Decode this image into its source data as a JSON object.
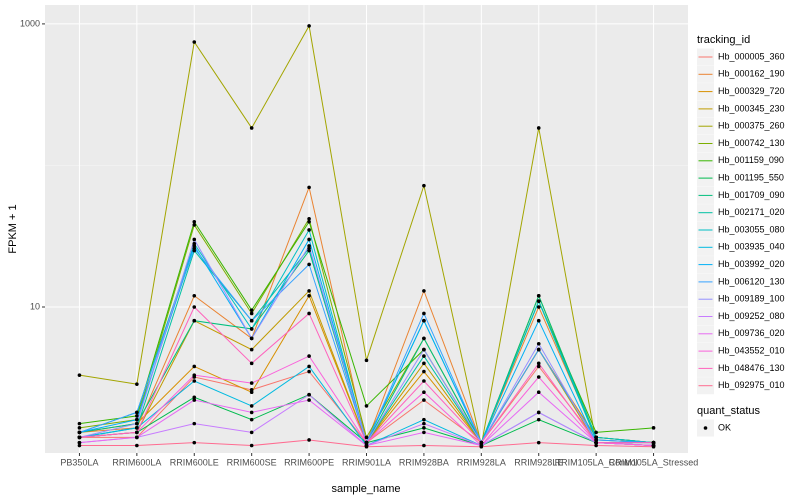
{
  "chart_data": {
    "type": "line",
    "x_label": "sample_name",
    "y_label": "FPKM + 1",
    "log_y": true,
    "grid": true,
    "point_color": "#000000",
    "legend_title": "tracking_id",
    "categories": [
      "PB350LA",
      "RRIM600LA",
      "RRIM600LE",
      "RRIM600SE",
      "RRIM600PE",
      "RRIM901LA",
      "RRIM928BA",
      "RRIM928LA",
      "RRIM928LE",
      "RRIM105LA_Control",
      "RRIM105LA_Stressed"
    ],
    "ylim": [
      0.93,
      1360
    ],
    "yticks": [
      10,
      1000
    ],
    "series": [
      {
        "name": "Hb_000005_360",
        "color": "#F8766D",
        "values": [
          1.2,
          1.2,
          3.2,
          2.6,
          3.5,
          1.1,
          2.2,
          1.1,
          3.8,
          1.15,
          1.1
        ]
      },
      {
        "name": "Hb_000162_190",
        "color": "#EA8331",
        "values": [
          1.3,
          1.4,
          12,
          6,
          70,
          1.1,
          13,
          1.1,
          10,
          1.2,
          1.1
        ]
      },
      {
        "name": "Hb_000329_720",
        "color": "#D89000",
        "values": [
          1.3,
          1.5,
          3.8,
          2.5,
          12,
          1.1,
          3.5,
          1.1,
          5,
          1.2,
          1.1
        ]
      },
      {
        "name": "Hb_000345_230",
        "color": "#C09B00",
        "values": [
          1.2,
          1.3,
          8,
          5,
          13,
          1.1,
          4,
          1.1,
          5,
          1.1,
          1.1
        ]
      },
      {
        "name": "Hb_000375_260",
        "color": "#A3A500",
        "values": [
          3.3,
          2.85,
          745,
          184,
          968,
          4.2,
          72,
          1.05,
          184,
          1.1,
          1.05
        ]
      },
      {
        "name": "Hb_000742_130",
        "color": "#7CAE00",
        "values": [
          1.4,
          1.6,
          38,
          9,
          42,
          1.2,
          6,
          1.1,
          12,
          1.2,
          1.1
        ]
      },
      {
        "name": "Hb_001159_090",
        "color": "#39B600",
        "values": [
          1.5,
          1.7,
          40,
          9.5,
          40,
          2,
          5,
          1.1,
          11,
          1.3,
          1.4
        ]
      },
      {
        "name": "Hb_001195_550",
        "color": "#00BB4E",
        "values": [
          1.2,
          1.3,
          2.3,
          1.6,
          2.4,
          1.1,
          1.4,
          1.05,
          1.6,
          1.1,
          1.05
        ]
      },
      {
        "name": "Hb_001709_090",
        "color": "#00BF7D",
        "values": [
          1.3,
          1.5,
          8,
          7,
          25,
          1.1,
          6,
          1.1,
          12,
          1.2,
          1.1
        ]
      },
      {
        "name": "Hb_002171_020",
        "color": "#00C1A3",
        "values": [
          1.2,
          1.4,
          25,
          8,
          26,
          1.1,
          4.5,
          1.1,
          11,
          1.15,
          1.1
        ]
      },
      {
        "name": "Hb_003055_080",
        "color": "#00BFC4",
        "values": [
          1.3,
          1.8,
          28,
          7,
          35,
          1.1,
          8,
          1.1,
          11,
          1.2,
          1.1
        ]
      },
      {
        "name": "Hb_003935_040",
        "color": "#00BAE0",
        "values": [
          1.2,
          1.4,
          3,
          2,
          3.8,
          1.05,
          1.6,
          1.05,
          1.8,
          1.1,
          1.05
        ]
      },
      {
        "name": "Hb_003992_020",
        "color": "#00B0F6",
        "values": [
          1.3,
          1.6,
          27,
          6,
          30,
          1.1,
          8,
          1.1,
          8,
          1.1,
          1.1
        ]
      },
      {
        "name": "Hb_006120_130",
        "color": "#35A2FF",
        "values": [
          1.3,
          1.8,
          26,
          8,
          20,
          1.1,
          9,
          1.1,
          5,
          1.15,
          1.1
        ]
      },
      {
        "name": "Hb_009189_100",
        "color": "#9590FF",
        "values": [
          1.2,
          1.5,
          30,
          6,
          27,
          1.1,
          5,
          1.1,
          5.5,
          1.1,
          1.05
        ]
      },
      {
        "name": "Hb_009252_080",
        "color": "#C77CFF",
        "values": [
          1.1,
          1.2,
          1.5,
          1.3,
          2.4,
          1.05,
          1.5,
          1.05,
          1.8,
          1.1,
          1.05
        ]
      },
      {
        "name": "Hb_009736_020",
        "color": "#E76BF3",
        "values": [
          1.1,
          1.2,
          2.2,
          1.8,
          2.2,
          1.05,
          1.3,
          1.05,
          2.5,
          1.1,
          1.05
        ]
      },
      {
        "name": "Hb_043552_010",
        "color": "#FA62DB",
        "values": [
          1.2,
          1.3,
          3.3,
          2.9,
          4.5,
          1.1,
          2.5,
          1.05,
          3.2,
          1.1,
          1.05
        ]
      },
      {
        "name": "Hb_048476_130",
        "color": "#FF62BC",
        "values": [
          1.2,
          1.3,
          10,
          4,
          9,
          1.1,
          3,
          1.1,
          4,
          1.1,
          1.1
        ]
      },
      {
        "name": "Hb_092975_010",
        "color": "#FF6C91",
        "values": [
          1.05,
          1.05,
          1.1,
          1.05,
          1.15,
          1.03,
          1.05,
          1.03,
          1.1,
          1.05,
          1.03
        ]
      }
    ],
    "legend2": {
      "title": "quant_status",
      "entries": [
        "OK"
      ]
    }
  }
}
